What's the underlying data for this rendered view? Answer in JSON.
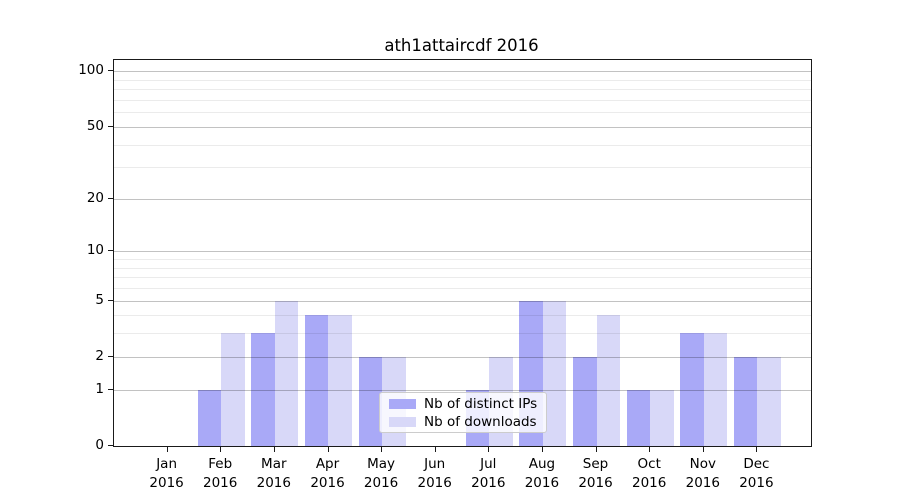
{
  "title": "ath1attaircdf 2016",
  "year_label": "2016",
  "chart_data": {
    "type": "bar",
    "title": "ath1attaircdf 2016",
    "categories": [
      "Jan 2016",
      "Feb 2016",
      "Mar 2016",
      "Apr 2016",
      "May 2016",
      "Jun 2016",
      "Jul 2016",
      "Aug 2016",
      "Sep 2016",
      "Oct 2016",
      "Nov 2016",
      "Dec 2016"
    ],
    "months": [
      "Jan",
      "Feb",
      "Mar",
      "Apr",
      "May",
      "Jun",
      "Jul",
      "Aug",
      "Sep",
      "Oct",
      "Nov",
      "Dec"
    ],
    "series": [
      {
        "name": "Nb of distinct IPs",
        "color": "#a9a9f7",
        "values": [
          0,
          1,
          3,
          4,
          2,
          0,
          1,
          5,
          2,
          1,
          3,
          2
        ]
      },
      {
        "name": "Nb of downloads",
        "color": "#d8d8f8",
        "values": [
          0,
          3,
          5,
          4,
          2,
          0,
          2,
          5,
          4,
          1,
          3,
          2
        ]
      }
    ],
    "xlabel": "",
    "ylabel": "",
    "yscale": "log1p",
    "ylim": [
      0,
      115
    ],
    "y_major_ticks": [
      0,
      1,
      2,
      5,
      10,
      20,
      50,
      100
    ],
    "y_tick_labels": [
      "0",
      "1",
      "2",
      "5",
      "10",
      "20",
      "50",
      "100"
    ],
    "y_minor_ticks": [
      3,
      4,
      6,
      7,
      8,
      9,
      30,
      40,
      60,
      70,
      80,
      90
    ],
    "grid": true,
    "legend_position": "lower-center"
  },
  "legend": {
    "items": [
      {
        "label": "Nb of distinct IPs",
        "color": "#a9a9f7"
      },
      {
        "label": "Nb of downloads",
        "color": "#d8d8f8"
      }
    ]
  },
  "colors": {
    "bar_dark": "#a9a9f7",
    "bar_light": "#d8d8f8",
    "grid_major": "rgba(0,0,0,0.24)",
    "grid_minor": "rgba(0,0,0,0.08)",
    "spine": "#1a1a1a",
    "background": "#ffffff"
  }
}
